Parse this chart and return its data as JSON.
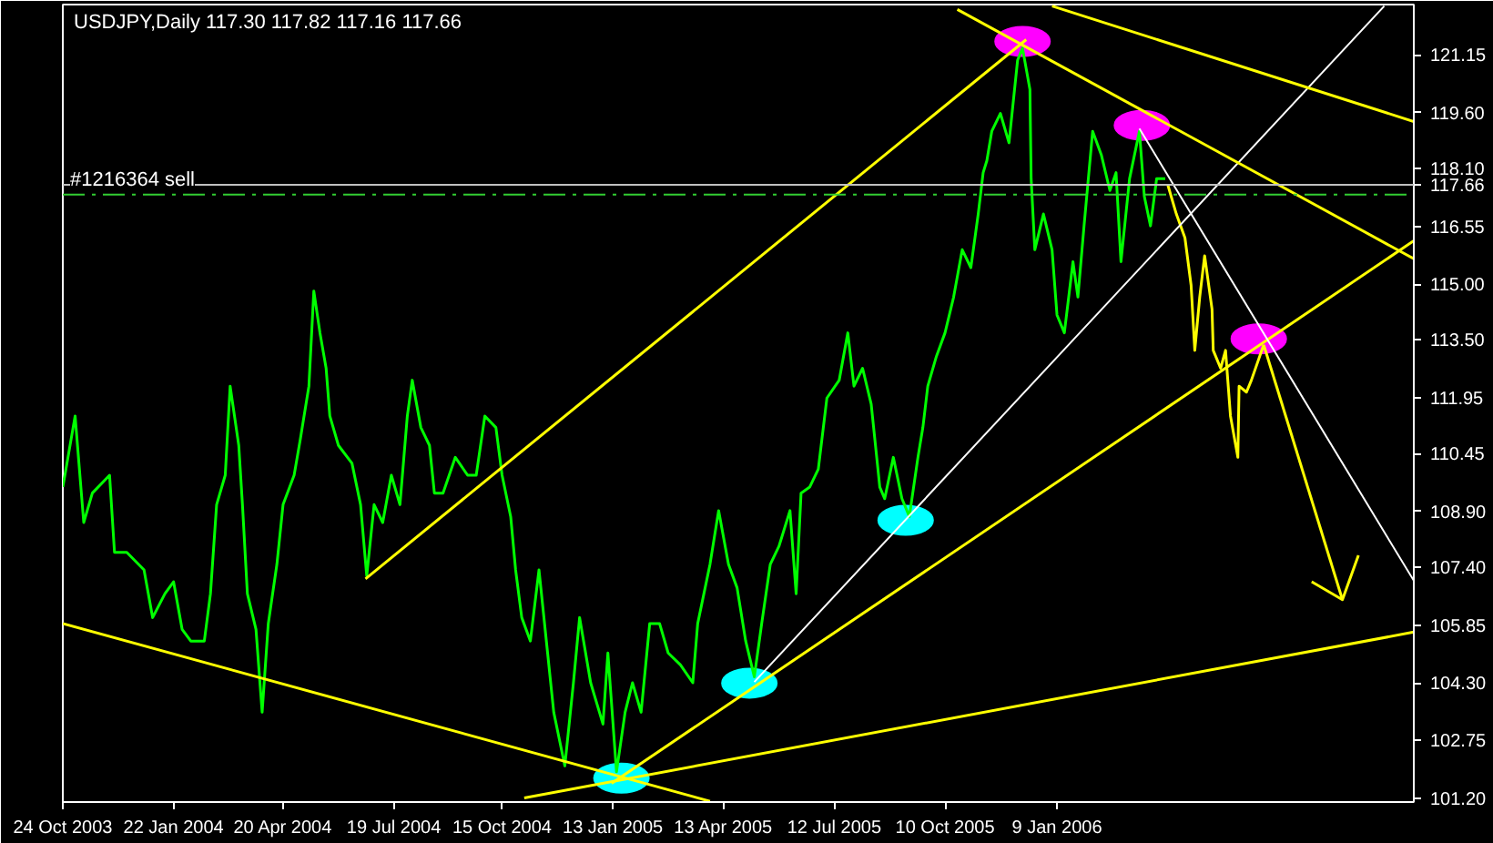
{
  "chart_data": {
    "type": "line",
    "title": "USDJPY,Daily  117.30 117.82 117.16 117.66",
    "xlim": [
      "2003-10-24",
      "2006-10-26"
    ],
    "ylim": [
      101.1,
      122.5
    ],
    "xticks": [
      {
        "value": "2003-10-24",
        "label": "24 Oct 2003"
      },
      {
        "value": "2004-01-22",
        "label": "22 Jan 2004"
      },
      {
        "value": "2004-04-20",
        "label": "20 Apr 2004"
      },
      {
        "value": "2004-07-19",
        "label": "19 Jul 2004"
      },
      {
        "value": "2004-10-15",
        "label": "15 Oct 2004"
      },
      {
        "value": "2005-01-13",
        "label": "13 Jan 2005"
      },
      {
        "value": "2005-04-13",
        "label": "13 Apr 2005"
      },
      {
        "value": "2005-07-12",
        "label": "12 Jul 2005"
      },
      {
        "value": "2005-10-10",
        "label": "10 Oct 2005"
      },
      {
        "value": "2006-01-09",
        "label": "9 Jan 2006"
      }
    ],
    "yticks": [
      {
        "value": 121.15,
        "label": "121.15"
      },
      {
        "value": 119.6,
        "label": "119.60"
      },
      {
        "value": 118.1,
        "label": "118.10"
      },
      {
        "value": 116.55,
        "label": "116.55"
      },
      {
        "value": 115,
        "label": "115.00"
      },
      {
        "value": 113.5,
        "label": "113.50"
      },
      {
        "value": 111.95,
        "label": "111.95"
      },
      {
        "value": 110.45,
        "label": "110.45"
      },
      {
        "value": 108.9,
        "label": "108.90"
      },
      {
        "value": 107.4,
        "label": "107.40"
      },
      {
        "value": 105.85,
        "label": "105.85"
      },
      {
        "value": 104.3,
        "label": "104.30"
      },
      {
        "value": 102.75,
        "label": "102.75"
      },
      {
        "value": 101.2,
        "label": "101.20"
      }
    ],
    "grid": false,
    "ref_lines": [
      {
        "axis": "y",
        "value": 117.66,
        "label": "117.66",
        "color": "#c0c0c0",
        "line_style": "solid"
      },
      {
        "axis": "y",
        "value": 117.4,
        "label": "#1216364 sell",
        "color": "#32cd32",
        "line_style": "dashed"
      }
    ],
    "series": [
      {
        "color": "#00ff00",
        "x": [
          "2003-10-24",
          "2003-11-03",
          "2003-11-10",
          "2003-11-17",
          "2003-12-01",
          "2003-12-05",
          "2003-12-15",
          "2003-12-29",
          "2004-01-05",
          "2004-01-15",
          "2004-01-22",
          "2004-01-29",
          "2004-02-05",
          "2004-02-16",
          "2004-02-21",
          "2004-02-26",
          "2004-03-04",
          "2004-03-08",
          "2004-03-15",
          "2004-03-18",
          "2004-03-22",
          "2004-03-29",
          "2004-04-03",
          "2004-04-08",
          "2004-04-15",
          "2004-04-20",
          "2004-04-29",
          "2004-05-04",
          "2004-05-11",
          "2004-05-15",
          "2004-05-20",
          "2004-05-25",
          "2004-05-28",
          "2004-06-04",
          "2004-06-15",
          "2004-06-22",
          "2004-06-27",
          "2004-07-03",
          "2004-07-10",
          "2004-07-17",
          "2004-07-24",
          "2004-07-30",
          "2004-08-03",
          "2004-08-10",
          "2004-08-17",
          "2004-08-21",
          "2004-08-28",
          "2004-09-07",
          "2004-09-17",
          "2004-09-24",
          "2004-10-01",
          "2004-10-10",
          "2004-10-15",
          "2004-10-22",
          "2004-10-26",
          "2004-10-31",
          "2004-11-07",
          "2004-11-14",
          "2004-11-21",
          "2004-11-26",
          "2004-12-05",
          "2004-12-12",
          "2004-12-17",
          "2004-12-26",
          "2005-01-05",
          "2005-01-09",
          "2005-01-16",
          "2005-01-23",
          "2005-01-29",
          "2005-02-05",
          "2005-02-12",
          "2005-02-20",
          "2005-02-27",
          "2005-03-09",
          "2005-03-19",
          "2005-03-23",
          "2005-04-02",
          "2005-04-09",
          "2005-04-17",
          "2005-04-24",
          "2005-05-01",
          "2005-05-08",
          "2005-05-14",
          "2005-05-21",
          "2005-05-28",
          "2005-06-06",
          "2005-06-11",
          "2005-06-15",
          "2005-06-22",
          "2005-06-29",
          "2005-07-06",
          "2005-07-16",
          "2005-07-23",
          "2005-07-28",
          "2005-08-04",
          "2005-08-11",
          "2005-08-18",
          "2005-08-22",
          "2005-08-29",
          "2005-09-05",
          "2005-09-11",
          "2005-09-18",
          "2005-09-22",
          "2005-09-26",
          "2005-10-03",
          "2005-10-10",
          "2005-10-17",
          "2005-10-24",
          "2005-10-31",
          "2005-11-06",
          "2005-11-10",
          "2005-11-13",
          "2005-11-17",
          "2005-11-24",
          "2005-12-01",
          "2005-12-08",
          "2005-12-12",
          "2005-12-18",
          "2005-12-19",
          "2005-12-22",
          "2005-12-29",
          "2006-01-05",
          "2006-01-09",
          "2006-01-15",
          "2006-01-22",
          "2006-01-26",
          "2006-01-31",
          "2006-02-07",
          "2006-02-14",
          "2006-02-21",
          "2006-02-26",
          "2006-03-02",
          "2006-03-09",
          "2006-03-17",
          "2006-03-21",
          "2006-03-26",
          "2006-03-31",
          "2006-04-07"
        ],
        "values": [
          109.55,
          111.46,
          108.6,
          109.39,
          109.87,
          107.8,
          107.8,
          107.33,
          106.05,
          106.69,
          107.01,
          105.73,
          105.42,
          105.42,
          106.69,
          109.08,
          109.87,
          112.26,
          110.67,
          109.08,
          106.69,
          105.73,
          103.51,
          105.89,
          107.48,
          109.08,
          109.87,
          110.83,
          112.26,
          114.81,
          113.69,
          112.74,
          111.46,
          110.67,
          110.19,
          109.08,
          107.17,
          109.08,
          108.6,
          109.87,
          109.08,
          111.46,
          112.42,
          111.15,
          110.67,
          109.39,
          109.39,
          110.35,
          109.87,
          109.87,
          111.46,
          111.15,
          109.87,
          108.76,
          107.33,
          106.05,
          105.42,
          107.33,
          105.1,
          103.51,
          102.07,
          104.3,
          106.05,
          104.3,
          103.19,
          105.1,
          101.91,
          103.51,
          104.3,
          103.51,
          105.89,
          105.89,
          105.1,
          104.78,
          104.3,
          105.89,
          107.48,
          108.92,
          107.48,
          106.85,
          105.42,
          104.46,
          105.89,
          107.48,
          107.96,
          108.92,
          106.69,
          109.39,
          109.55,
          110.03,
          111.94,
          112.42,
          113.69,
          112.26,
          112.74,
          111.78,
          109.55,
          109.24,
          110.35,
          109.24,
          108.76,
          110.35,
          111.15,
          112.26,
          113.06,
          113.69,
          114.65,
          115.92,
          115.44,
          116.88,
          117.99,
          118.31,
          119.1,
          119.58,
          118.79,
          121.01,
          121.33,
          120.22,
          117.83,
          115.92,
          116.88,
          115.92,
          114.17,
          113.69,
          115.6,
          114.65,
          116.56,
          119.1,
          118.47,
          117.51,
          117.99,
          115.6,
          117.83,
          119.1,
          117.35,
          116.56,
          117.83,
          117.83
        ]
      },
      {
        "color": "#ffff00",
        "x": [
          "2006-04-09",
          "2006-04-16",
          "2006-04-23",
          "2006-04-28",
          "2006-05-01",
          "2006-05-05",
          "2006-05-09",
          "2006-05-15",
          "2006-05-16",
          "2006-05-22",
          "2006-05-26",
          "2006-05-30",
          "2006-06-05",
          "2006-06-06",
          "2006-06-12",
          "2006-06-16",
          "2006-06-26"
        ],
        "values": [
          117.67,
          116.88,
          116.24,
          114.97,
          113.22,
          114.65,
          115.76,
          114.33,
          113.22,
          112.74,
          113.22,
          111.46,
          110.35,
          112.26,
          112.1,
          112.42,
          113.37
        ]
      },
      {
        "color": "#ffff00",
        "x": [
          "2006-06-26",
          "2006-08-29"
        ],
        "values": [
          113.37,
          106.53
        ]
      },
      {
        "color": "#ffff00",
        "x": [
          "2006-08-04",
          "2006-08-29",
          "2006-09-11"
        ],
        "values": [
          107.01,
          106.53,
          107.72
        ]
      },
      {
        "color": "#ffff00",
        "x": [
          "2004-06-26",
          "2005-12-15"
        ],
        "values": [
          107.09,
          121.56
        ]
      },
      {
        "color": "#ffff00",
        "x": [
          "2003-10-24",
          "2005-04-02"
        ],
        "values": [
          105.89,
          101.12
        ]
      },
      {
        "color": "#ffff00",
        "x": [
          "2004-11-02",
          "2006-10-26"
        ],
        "values": [
          101.21,
          105.66
        ]
      },
      {
        "color": "#ffff00",
        "x": [
          "2005-01-12",
          "2006-10-26"
        ],
        "values": [
          101.6,
          116.16
        ]
      },
      {
        "color": "#ffffff",
        "x": [
          "2005-05-08",
          "2006-10-02"
        ],
        "values": [
          104.32,
          122.46
        ]
      },
      {
        "color": "#ffff00",
        "x": [
          "2005-10-20",
          "2006-10-26"
        ],
        "values": [
          122.37,
          115.68
        ]
      },
      {
        "color": "#ffff00",
        "x": [
          "2006-01-05",
          "2006-10-26"
        ],
        "values": [
          122.46,
          119.36
        ]
      },
      {
        "color": "#ffffff",
        "x": [
          "2006-03-17",
          "2006-10-26"
        ],
        "values": [
          119.17,
          107.04
        ]
      },
      {
        "type": "scatter",
        "marker": "circle",
        "color": "#ff00ff",
        "x": [
          "2005-12-12",
          "2006-03-19",
          "2006-06-22"
        ],
        "values": [
          121.51,
          119.26,
          113.53
        ]
      },
      {
        "type": "scatter",
        "marker": "circle",
        "color": "#00ffff",
        "x": [
          "2005-01-20",
          "2005-05-04",
          "2005-09-08"
        ],
        "values": [
          101.74,
          104.29,
          108.66
        ]
      }
    ]
  }
}
